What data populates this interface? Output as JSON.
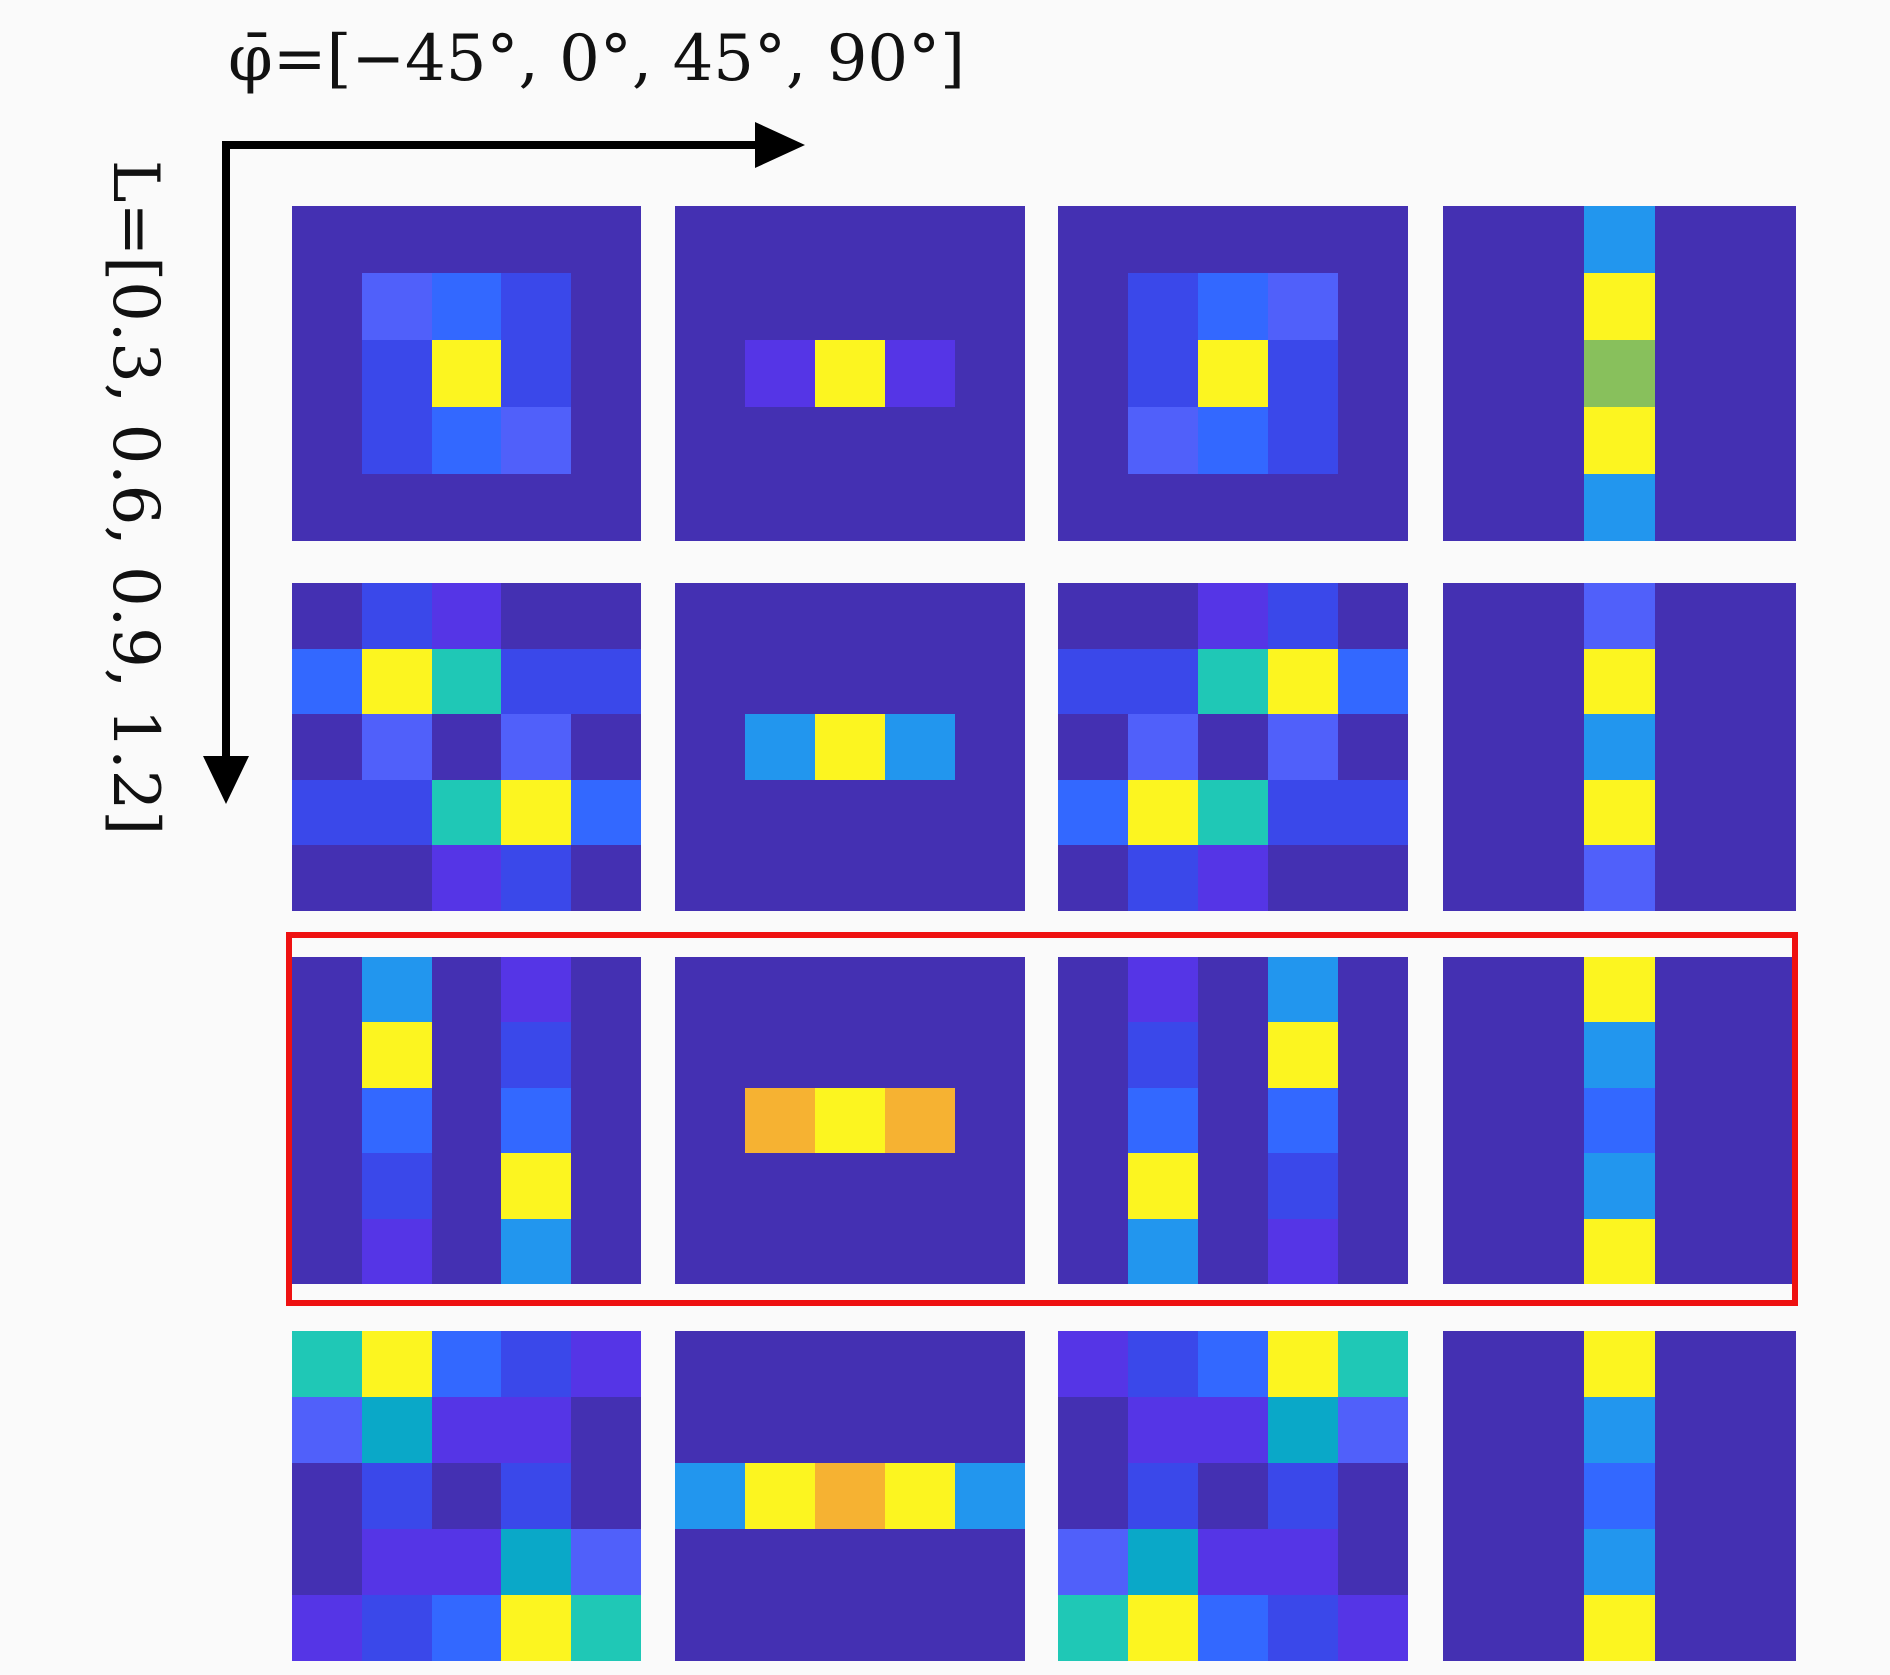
{
  "title": "φ̄=[−45°, 0°, 45°, 90°]",
  "ylabel": "L=[0.3, 0.6, 0.9, 1.2]",
  "chart_data": {
    "type": "heatmap",
    "title": "φ̄=[−45°, 0°, 45°, 90°]",
    "xlabel": "φ̄ = [−45°, 0°, 45°, 90°]",
    "ylabel": "L = [0.3, 0.6, 0.9, 1.2]",
    "columns": [
      "-45°",
      "0°",
      "45°",
      "90°"
    ],
    "rows": [
      "0.3",
      "0.6",
      "0.9",
      "1.2"
    ],
    "highlighted_row": "0.9",
    "colormap_levels": {
      "0": "#4430b2",
      "1": "#5535e6",
      "2": "#3a48ea",
      "3": "#5060fa",
      "4": "#3368ff",
      "5": "#2296ee",
      "6": "#0aa8c8",
      "7": "#1fc8b6",
      "8": "#88c05c",
      "9": "#f6b232",
      "10": "#fcf520"
    },
    "panels": [
      [
        [
          [
            0,
            0,
            0,
            0,
            0
          ],
          [
            0,
            3,
            4,
            2,
            0
          ],
          [
            0,
            2,
            10,
            2,
            0
          ],
          [
            0,
            2,
            4,
            3,
            0
          ],
          [
            0,
            0,
            0,
            0,
            0
          ]
        ],
        [
          [
            0,
            0,
            0,
            0,
            0
          ],
          [
            0,
            0,
            0,
            0,
            0
          ],
          [
            0,
            1,
            10,
            1,
            0
          ],
          [
            0,
            0,
            0,
            0,
            0
          ],
          [
            0,
            0,
            0,
            0,
            0
          ]
        ],
        [
          [
            0,
            0,
            0,
            0,
            0
          ],
          [
            0,
            2,
            4,
            3,
            0
          ],
          [
            0,
            2,
            10,
            2,
            0
          ],
          [
            0,
            3,
            4,
            2,
            0
          ],
          [
            0,
            0,
            0,
            0,
            0
          ]
        ],
        [
          [
            0,
            0,
            5,
            0,
            0
          ],
          [
            0,
            0,
            10,
            0,
            0
          ],
          [
            0,
            0,
            8,
            0,
            0
          ],
          [
            0,
            0,
            10,
            0,
            0
          ],
          [
            0,
            0,
            5,
            0,
            0
          ]
        ]
      ],
      [
        [
          [
            0,
            2,
            1,
            0,
            0
          ],
          [
            4,
            10,
            7,
            2,
            2
          ],
          [
            0,
            3,
            0,
            3,
            0
          ],
          [
            2,
            2,
            7,
            10,
            4
          ],
          [
            0,
            0,
            1,
            2,
            0
          ]
        ],
        [
          [
            0,
            0,
            0,
            0,
            0
          ],
          [
            0,
            0,
            0,
            0,
            0
          ],
          [
            0,
            5,
            10,
            5,
            0
          ],
          [
            0,
            0,
            0,
            0,
            0
          ],
          [
            0,
            0,
            0,
            0,
            0
          ]
        ],
        [
          [
            0,
            0,
            1,
            2,
            0
          ],
          [
            2,
            2,
            7,
            10,
            4
          ],
          [
            0,
            3,
            0,
            3,
            0
          ],
          [
            4,
            10,
            7,
            2,
            2
          ],
          [
            0,
            2,
            1,
            0,
            0
          ]
        ],
        [
          [
            0,
            0,
            3,
            0,
            0
          ],
          [
            0,
            0,
            10,
            0,
            0
          ],
          [
            0,
            0,
            5,
            0,
            0
          ],
          [
            0,
            0,
            10,
            0,
            0
          ],
          [
            0,
            0,
            3,
            0,
            0
          ]
        ]
      ],
      [
        [
          [
            0,
            5,
            0,
            1,
            0
          ],
          [
            0,
            10,
            0,
            2,
            0
          ],
          [
            0,
            4,
            0,
            4,
            0
          ],
          [
            0,
            2,
            0,
            10,
            0
          ],
          [
            0,
            1,
            0,
            5,
            0
          ]
        ],
        [
          [
            0,
            0,
            0,
            0,
            0
          ],
          [
            0,
            0,
            0,
            0,
            0
          ],
          [
            0,
            9,
            10,
            9,
            0
          ],
          [
            0,
            0,
            0,
            0,
            0
          ],
          [
            0,
            0,
            0,
            0,
            0
          ]
        ],
        [
          [
            0,
            1,
            0,
            5,
            0
          ],
          [
            0,
            2,
            0,
            10,
            0
          ],
          [
            0,
            4,
            0,
            4,
            0
          ],
          [
            0,
            10,
            0,
            2,
            0
          ],
          [
            0,
            5,
            0,
            1,
            0
          ]
        ],
        [
          [
            0,
            0,
            10,
            0,
            0
          ],
          [
            0,
            0,
            5,
            0,
            0
          ],
          [
            0,
            0,
            4,
            0,
            0
          ],
          [
            0,
            0,
            5,
            0,
            0
          ],
          [
            0,
            0,
            10,
            0,
            0
          ]
        ]
      ],
      [
        [
          [
            7,
            10,
            4,
            2,
            1
          ],
          [
            3,
            6,
            1,
            1,
            0
          ],
          [
            0,
            2,
            0,
            2,
            0
          ],
          [
            0,
            1,
            1,
            6,
            3
          ],
          [
            1,
            2,
            4,
            10,
            7
          ]
        ],
        [
          [
            0,
            0,
            0,
            0,
            0
          ],
          [
            0,
            0,
            0,
            0,
            0
          ],
          [
            5,
            10,
            9,
            10,
            5
          ],
          [
            0,
            0,
            0,
            0,
            0
          ],
          [
            0,
            0,
            0,
            0,
            0
          ]
        ],
        [
          [
            1,
            2,
            4,
            10,
            7
          ],
          [
            0,
            1,
            1,
            6,
            3
          ],
          [
            0,
            2,
            0,
            2,
            0
          ],
          [
            3,
            6,
            1,
            1,
            0
          ],
          [
            7,
            10,
            4,
            2,
            1
          ]
        ],
        [
          [
            0,
            0,
            10,
            0,
            0
          ],
          [
            0,
            0,
            5,
            0,
            0
          ],
          [
            0,
            0,
            4,
            0,
            0
          ],
          [
            0,
            0,
            5,
            0,
            0
          ],
          [
            0,
            0,
            10,
            0,
            0
          ]
        ]
      ]
    ]
  }
}
